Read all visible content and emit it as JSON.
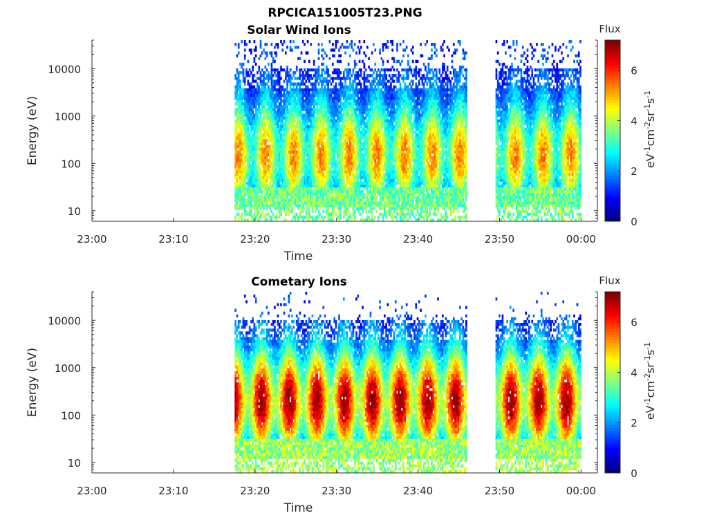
{
  "figure": {
    "title": "RPCICA151005T23.PNG"
  },
  "chart_data": [
    {
      "type": "heatmap",
      "title": "Solar Wind Ions",
      "xlabel": "Time",
      "ylabel": "Energy (eV)",
      "y_scale": "log",
      "ylim": [
        6,
        40000
      ],
      "xlim": [
        "23:00",
        "00:02"
      ],
      "x_ticks": [
        "23:00",
        "23:10",
        "23:20",
        "23:30",
        "23:40",
        "23:50",
        "00:00"
      ],
      "y_ticks": [
        "10",
        "100",
        "1000",
        "10000"
      ],
      "colorbar": {
        "label_title": "Flux",
        "unit_label": "eV-1cm-2sr-1s-1",
        "ticks": [
          "0",
          "2",
          "4",
          "6"
        ],
        "range": [
          0,
          7.2
        ],
        "colormap": "jet"
      },
      "data_segments": [
        {
          "start": "23:17:30",
          "end": "23:46:00"
        },
        {
          "start": "23:49:30",
          "end": "00:00:00"
        }
      ],
      "typical_flux": {
        "low_energy": 3.5,
        "mid_energy": 3.0,
        "high_energy": 1.2
      },
      "peak_energy_eV": 150,
      "grid": false
    },
    {
      "type": "heatmap",
      "title": "Cometary Ions",
      "xlabel": "Time",
      "ylabel": "Energy (eV)",
      "y_scale": "log",
      "ylim": [
        6,
        40000
      ],
      "xlim": [
        "23:00",
        "00:02"
      ],
      "x_ticks": [
        "23:00",
        "23:10",
        "23:20",
        "23:30",
        "23:40",
        "23:50",
        "00:00"
      ],
      "y_ticks": [
        "10",
        "100",
        "1000",
        "10000"
      ],
      "colorbar": {
        "label_title": "Flux",
        "unit_label": "eV-1cm-2sr-1s-1",
        "ticks": [
          "0",
          "2",
          "4",
          "6"
        ],
        "range": [
          0,
          7.2
        ],
        "colormap": "jet"
      },
      "data_segments": [
        {
          "start": "23:17:30",
          "end": "23:46:00"
        },
        {
          "start": "23:49:30",
          "end": "00:00:00"
        }
      ],
      "typical_flux": {
        "low_energy": 3.8,
        "mid_energy": 4.3,
        "high_energy": 1.2
      },
      "peak_energy_eV": 200,
      "grid": false
    }
  ]
}
